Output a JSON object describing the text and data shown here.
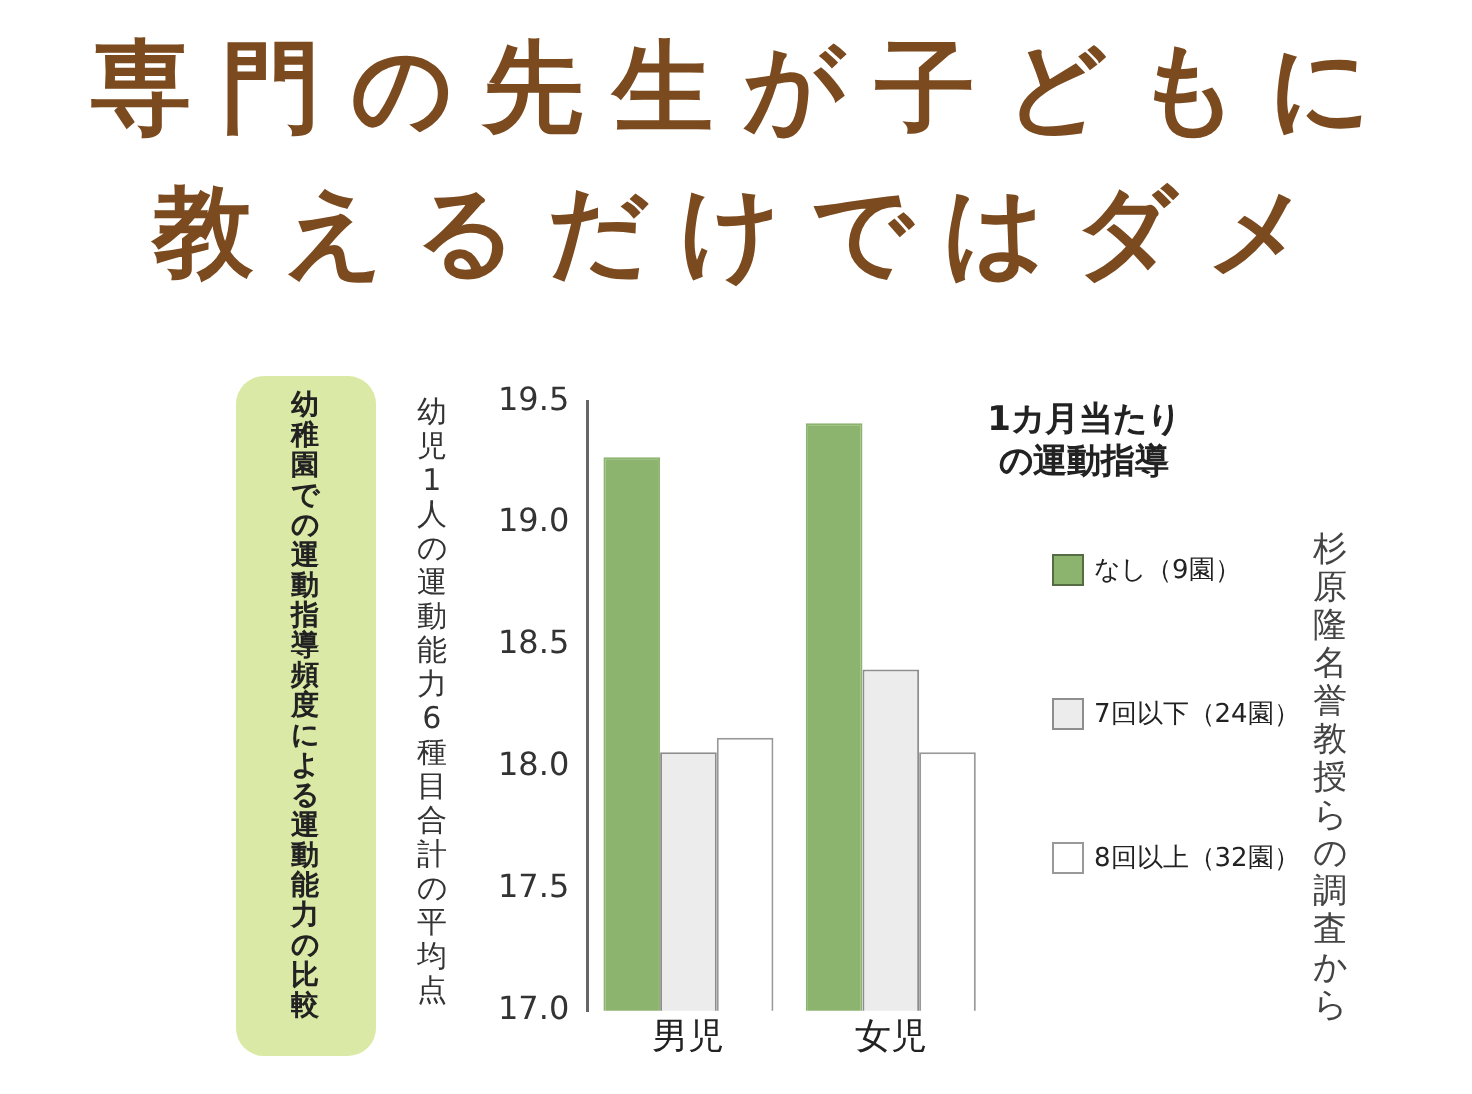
{
  "chart_data": {
    "type": "bar",
    "title": "専門の先生が子どもに教えるだけではダメ",
    "subtitle": "幼稚園での運動指導頻度による運動能力の比較",
    "ylabel": "幼児1人の運動能力6種目合計の平均点",
    "legend_title": "1カ月当たりの運動指導",
    "legend": "right",
    "categories": [
      "男児",
      "女児"
    ],
    "series": [
      {
        "name": "なし（9園）",
        "color": "#8db46f",
        "values": [
          19.27,
          19.41
        ]
      },
      {
        "name": "7回以下（24園）",
        "color": "#ececec",
        "values": [
          18.06,
          18.4
        ]
      },
      {
        "name": "8回以上（32園）",
        "color": "#ffffff",
        "values": [
          18.12,
          18.06
        ]
      }
    ],
    "ylim": [
      17.0,
      19.5
    ],
    "yticks": [
      {
        "value": 17.0,
        "label": "17.0"
      },
      17.5,
      {
        "value": 18.0,
        "label": "18.0"
      },
      18.5,
      {
        "value": 19.0,
        "label": "19.0"
      },
      19.5
    ],
    "grid": false,
    "annotations": [
      "杉原隆名誉教授らの調査から"
    ]
  }
}
